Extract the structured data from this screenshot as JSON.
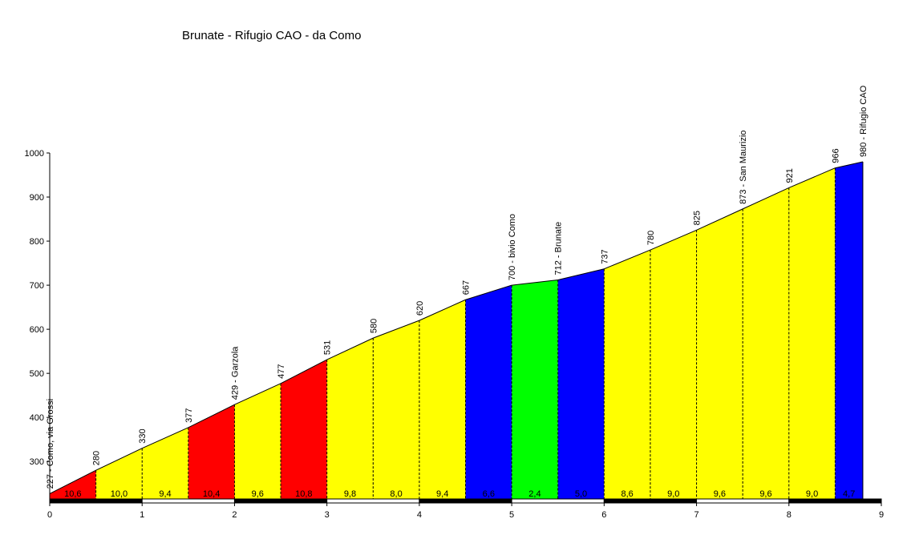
{
  "chart_data": {
    "type": "profile",
    "title": "Brunate - Rifugio CAO - da Como",
    "x": [
      0,
      0.5,
      1,
      1.5,
      2,
      2.5,
      3,
      3.5,
      4,
      4.5,
      5,
      5.5,
      6,
      6.5,
      7,
      7.5,
      8,
      8.5,
      8.8
    ],
    "values": [
      227,
      280,
      330,
      377,
      429,
      477,
      531,
      580,
      620,
      667,
      700,
      712,
      737,
      780,
      825,
      873,
      921,
      966,
      980
    ],
    "value_labels": [
      "227 - Como, via Grossi",
      "280",
      "330",
      "377",
      "429 - Garzola",
      "477",
      "531",
      "580",
      "620",
      "667",
      "700 - bivio Como",
      "712 - Brunate",
      "737",
      "780",
      "825",
      "873 - San Maurizio",
      "921",
      "966",
      "980 - Rifugio CAO"
    ],
    "segments": {
      "values": [
        10.6,
        10.0,
        9.4,
        10.4,
        9.6,
        10.8,
        9.8,
        8.0,
        9.4,
        6.6,
        2.4,
        5.0,
        8.6,
        9.0,
        9.6,
        9.6,
        9.0,
        4.7
      ],
      "value_labels": [
        "10,6",
        "10,0",
        "9,4",
        "10,4",
        "9,6",
        "10,8",
        "9,8",
        "8,0",
        "9,4",
        "6,6",
        "2,4",
        "5,0",
        "8,6",
        "9,0",
        "9,6",
        "9,6",
        "9,0",
        "4,7"
      ],
      "colors": [
        "#ff0000",
        "#ffff00",
        "#ffff00",
        "#ff0000",
        "#ffff00",
        "#ff0000",
        "#ffff00",
        "#ffff00",
        "#ffff00",
        "#0000ff",
        "#00ff00",
        "#0000ff",
        "#ffff00",
        "#ffff00",
        "#ffff00",
        "#ffff00",
        "#ffff00",
        "#0000ff"
      ]
    },
    "xlim": [
      0,
      9
    ],
    "xticks": [
      0,
      1,
      2,
      3,
      4,
      5,
      6,
      7,
      8,
      9
    ],
    "ylim": [
      215,
      1000
    ],
    "yticks": [
      300,
      400,
      500,
      600,
      700,
      800,
      900,
      1000
    ]
  }
}
